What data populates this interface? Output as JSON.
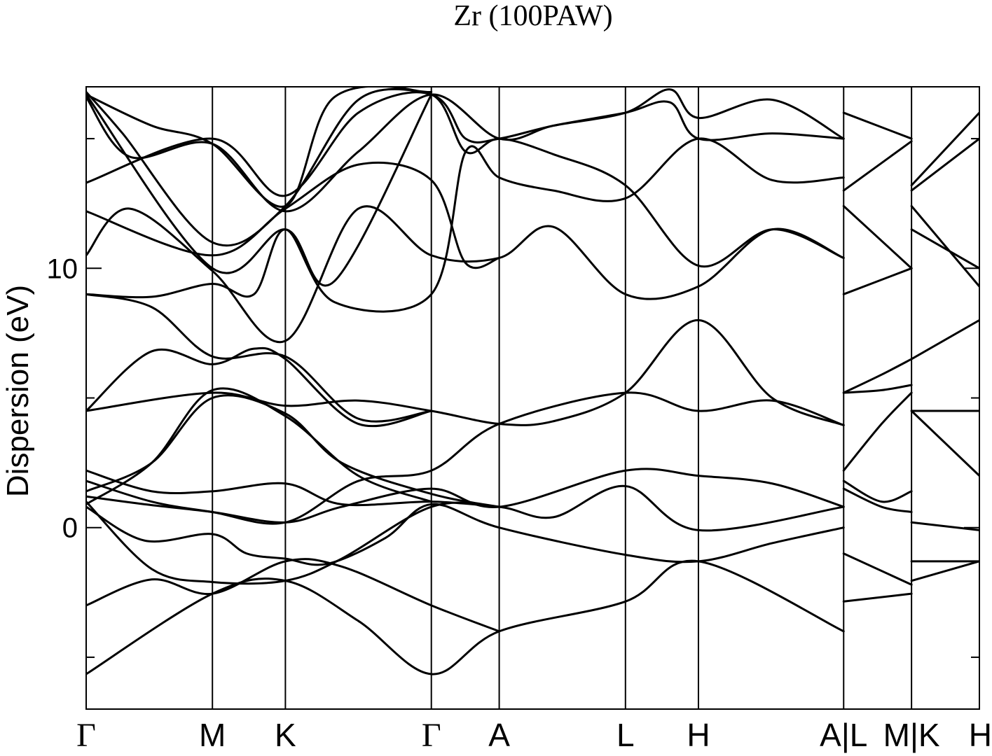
{
  "chart_data": {
    "type": "line",
    "title": "Zr (100PAW)",
    "xlabel": "",
    "ylabel": "Dispersion (eV)",
    "ylim": [
      -7,
      17
    ],
    "xlim": [
      0,
      12.24
    ],
    "grid": false,
    "legend": "none",
    "line_color": "#000000",
    "yticks": [
      {
        "value": 0,
        "label": "0"
      },
      {
        "value": 10,
        "label": "10"
      }
    ],
    "yminor_ticks": [
      -5,
      5,
      15
    ],
    "k_points": [
      {
        "label": "Γ",
        "x": 0
      },
      {
        "label": "M",
        "x": 1.73
      },
      {
        "label": "K",
        "x": 2.73
      },
      {
        "label": "Γ",
        "x": 4.73
      },
      {
        "label": "A",
        "x": 5.66
      },
      {
        "label": "L",
        "x": 7.39
      },
      {
        "label": "H",
        "x": 8.39
      },
      {
        "label": "A|L",
        "x": 10.38
      },
      {
        "label": "M|K",
        "x": 11.31
      },
      {
        "label": "H",
        "x": 12.24
      }
    ],
    "series": [
      {
        "points": [
          [
            0,
            -5.65
          ],
          [
            1.73,
            -2.55
          ],
          [
            2.73,
            -2.05
          ],
          [
            3.73,
            -3.6
          ],
          [
            4.73,
            -5.65
          ],
          [
            5.66,
            -4.0
          ],
          [
            7.39,
            -2.85
          ],
          [
            8.39,
            -1.3
          ],
          [
            10.38,
            -4.0
          ]
        ]
      },
      {
        "points": [
          [
            10.38,
            -2.85
          ],
          [
            11.31,
            -2.55
          ]
        ]
      },
      {
        "points": [
          [
            11.31,
            -2.05
          ],
          [
            12.24,
            -1.3
          ]
        ]
      },
      {
        "points": [
          [
            0,
            -3.0
          ],
          [
            0.9,
            -2.0
          ],
          [
            1.73,
            -2.55
          ],
          [
            2.73,
            -1.3
          ],
          [
            3.5,
            -1.5
          ],
          [
            4.73,
            -3.0
          ],
          [
            5.66,
            -4.0
          ]
        ]
      },
      {
        "points": [
          [
            0,
            0.8
          ],
          [
            0.8,
            -0.5
          ],
          [
            1.73,
            -0.25
          ],
          [
            2.2,
            -1.0
          ],
          [
            2.73,
            -1.2
          ],
          [
            3.3,
            -1.4
          ],
          [
            4.1,
            -0.4
          ],
          [
            4.73,
            0.9
          ],
          [
            5.66,
            0.0
          ],
          [
            7.39,
            -1.05
          ],
          [
            8.39,
            -1.3
          ],
          [
            9.4,
            -0.6
          ],
          [
            10.38,
            0.0
          ]
        ]
      },
      {
        "points": [
          [
            10.38,
            -1.0
          ],
          [
            11.31,
            -2.2
          ]
        ]
      },
      {
        "points": [
          [
            11.31,
            -1.3
          ],
          [
            12.24,
            -1.3
          ]
        ]
      },
      {
        "points": [
          [
            0,
            1.0
          ],
          [
            0.9,
            -1.6
          ],
          [
            1.73,
            -2.1
          ],
          [
            2.73,
            -2.05
          ],
          [
            3.5,
            -1.2
          ],
          [
            4.73,
            0.8
          ],
          [
            5.66,
            0.8
          ],
          [
            6.4,
            0.4
          ],
          [
            7.39,
            1.6
          ],
          [
            8.39,
            -0.1
          ],
          [
            10.38,
            0.8
          ]
        ]
      },
      {
        "points": [
          [
            10.38,
            1.5
          ],
          [
            10.9,
            0.8
          ],
          [
            11.31,
            0.6
          ]
        ]
      },
      {
        "points": [
          [
            11.31,
            0.2
          ],
          [
            12.24,
            -0.1
          ]
        ]
      },
      {
        "points": [
          [
            0,
            1.2
          ],
          [
            0.8,
            0.9
          ],
          [
            1.73,
            0.6
          ],
          [
            2.73,
            0.2
          ],
          [
            3.5,
            0.8
          ],
          [
            4.73,
            1.5
          ],
          [
            5.66,
            0.8
          ],
          [
            7.39,
            2.2
          ],
          [
            8.39,
            2.0
          ],
          [
            9.4,
            1.7
          ],
          [
            10.38,
            0.8
          ]
        ]
      },
      {
        "points": [
          [
            10.38,
            1.8
          ],
          [
            10.9,
            1.0
          ],
          [
            11.31,
            1.4
          ]
        ]
      },
      {
        "points": [
          [
            11.31,
            4.5
          ],
          [
            12.24,
            2.0
          ]
        ]
      },
      {
        "points": [
          [
            0,
            2.2
          ],
          [
            0.9,
            1.4
          ],
          [
            1.73,
            1.4
          ],
          [
            2.73,
            1.7
          ],
          [
            3.5,
            0.9
          ],
          [
            4.73,
            1.0
          ],
          [
            5.66,
            0.8
          ]
        ]
      },
      {
        "points": [
          [
            0,
            1.4
          ],
          [
            0.9,
            2.5
          ],
          [
            1.73,
            5.0
          ],
          [
            2.73,
            4.4
          ],
          [
            3.5,
            2.5
          ],
          [
            4.73,
            1.3
          ],
          [
            5.66,
            0.8
          ]
        ]
      },
      {
        "points": [
          [
            0,
            1.8
          ],
          [
            0.9,
            1.0
          ],
          [
            1.73,
            0.6
          ],
          [
            2.73,
            0.2
          ],
          [
            3.73,
            1.8
          ],
          [
            4.73,
            2.2
          ],
          [
            5.66,
            4.0
          ],
          [
            7.39,
            5.2
          ],
          [
            8.39,
            4.5
          ],
          [
            9.4,
            4.9
          ],
          [
            10.38,
            3.95
          ]
        ]
      },
      {
        "points": [
          [
            10.38,
            2.2
          ],
          [
            10.9,
            4.0
          ],
          [
            11.31,
            5.2
          ]
        ]
      },
      {
        "points": [
          [
            0,
            4.5
          ],
          [
            1.73,
            5.2
          ],
          [
            2.73,
            4.7
          ],
          [
            3.73,
            4.9
          ],
          [
            4.73,
            4.5
          ],
          [
            5.66,
            4.0
          ],
          [
            6.4,
            4.1
          ],
          [
            7.39,
            5.2
          ],
          [
            8.39,
            8.0
          ],
          [
            9.4,
            5.0
          ],
          [
            10.38,
            3.95
          ]
        ]
      },
      {
        "points": [
          [
            10.38,
            5.2
          ],
          [
            10.9,
            5.3
          ],
          [
            11.31,
            5.5
          ]
        ]
      },
      {
        "points": [
          [
            11.31,
            4.5
          ],
          [
            12.24,
            4.5
          ]
        ]
      },
      {
        "points": [
          [
            0,
            0.9
          ],
          [
            0.9,
            2.5
          ],
          [
            1.73,
            5.3
          ],
          [
            2.73,
            4.3
          ],
          [
            3.73,
            2.0
          ],
          [
            4.73,
            1.0
          ]
        ]
      },
      {
        "points": [
          [
            0,
            4.5
          ],
          [
            0.9,
            6.8
          ],
          [
            1.73,
            6.3
          ],
          [
            2.3,
            6.9
          ],
          [
            2.73,
            6.5
          ],
          [
            3.73,
            4.0
          ],
          [
            4.73,
            4.5
          ]
        ]
      },
      {
        "points": [
          [
            0,
            9.0
          ],
          [
            0.9,
            8.5
          ],
          [
            1.73,
            6.6
          ],
          [
            2.73,
            6.6
          ],
          [
            3.73,
            4.2
          ],
          [
            4.73,
            4.5
          ]
        ]
      },
      {
        "points": [
          [
            10.38,
            5.2
          ],
          [
            10.9,
            5.9
          ],
          [
            11.31,
            6.5
          ]
        ]
      },
      {
        "points": [
          [
            11.31,
            6.5
          ],
          [
            12.24,
            8.0
          ]
        ]
      },
      {
        "points": [
          [
            0,
            10.5
          ],
          [
            0.6,
            12.3
          ],
          [
            1.73,
            9.9
          ],
          [
            2.73,
            7.2
          ],
          [
            3.73,
            12.3
          ],
          [
            4.73,
            10.5
          ],
          [
            5.66,
            10.4
          ],
          [
            6.4,
            11.6
          ],
          [
            7.39,
            9.0
          ],
          [
            8.39,
            9.3
          ],
          [
            9.4,
            11.5
          ],
          [
            10.38,
            10.4
          ]
        ]
      },
      {
        "points": [
          [
            10.38,
            9.0
          ],
          [
            11.31,
            10.0
          ]
        ]
      },
      {
        "points": [
          [
            11.31,
            11.5
          ],
          [
            12.24,
            10.0
          ]
        ]
      },
      {
        "points": [
          [
            0,
            9.0
          ],
          [
            0.9,
            8.9
          ],
          [
            1.73,
            9.4
          ],
          [
            2.3,
            9.0
          ],
          [
            2.73,
            11.5
          ],
          [
            3.4,
            8.7
          ],
          [
            4.73,
            9.0
          ],
          [
            5.2,
            14.5
          ],
          [
            5.66,
            13.5
          ],
          [
            6.4,
            13.0
          ],
          [
            7.39,
            12.7
          ],
          [
            8.39,
            15.0
          ],
          [
            9.4,
            13.4
          ],
          [
            10.38,
            13.5
          ]
        ]
      },
      {
        "points": [
          [
            10.38,
            12.4
          ],
          [
            11.31,
            10.0
          ]
        ]
      },
      {
        "points": [
          [
            11.31,
            12.4
          ],
          [
            12.24,
            9.3
          ]
        ]
      },
      {
        "points": [
          [
            0,
            12.2
          ],
          [
            1.73,
            10.5
          ],
          [
            2.73,
            12.3
          ],
          [
            3.73,
            14.0
          ],
          [
            4.73,
            13.4
          ],
          [
            5.2,
            10.2
          ],
          [
            5.66,
            10.4
          ]
        ]
      },
      {
        "points": [
          [
            0,
            13.3
          ],
          [
            1.73,
            15.0
          ],
          [
            2.73,
            12.8
          ],
          [
            3.73,
            16.0
          ],
          [
            4.73,
            16.7
          ],
          [
            5.2,
            14.5
          ],
          [
            5.66,
            15.0
          ],
          [
            6.4,
            14.4
          ],
          [
            7.39,
            13.2
          ],
          [
            8.39,
            10.1
          ],
          [
            9.4,
            11.5
          ],
          [
            10.38,
            10.4
          ]
        ]
      },
      {
        "points": [
          [
            0,
            16.6
          ],
          [
            0.6,
            14.3
          ],
          [
            1.73,
            14.8
          ],
          [
            2.73,
            12.2
          ],
          [
            3.73,
            14.5
          ],
          [
            4.73,
            16.7
          ],
          [
            5.66,
            15.0
          ],
          [
            6.4,
            15.5
          ],
          [
            7.39,
            16.0
          ],
          [
            8.0,
            16.4
          ],
          [
            8.39,
            15.0
          ],
          [
            9.4,
            15.2
          ],
          [
            10.38,
            15.0
          ]
        ]
      },
      {
        "points": [
          [
            10.38,
            13.0
          ],
          [
            11.31,
            14.9
          ]
        ]
      },
      {
        "points": [
          [
            11.31,
            13.0
          ],
          [
            12.24,
            15.0
          ]
        ]
      },
      {
        "points": [
          [
            0,
            16.7
          ],
          [
            0.9,
            15.5
          ],
          [
            1.73,
            14.8
          ],
          [
            2.73,
            12.4
          ],
          [
            3.4,
            16.6
          ],
          [
            4.73,
            16.7
          ],
          [
            5.2,
            15.0
          ],
          [
            5.66,
            15.0
          ],
          [
            6.4,
            15.5
          ],
          [
            7.39,
            16.0
          ],
          [
            8.0,
            16.9
          ],
          [
            8.39,
            15.8
          ],
          [
            9.4,
            16.5
          ],
          [
            10.38,
            15.0
          ]
        ]
      },
      {
        "points": [
          [
            10.38,
            16.0
          ],
          [
            11.31,
            15.0
          ]
        ]
      },
      {
        "points": [
          [
            11.31,
            13.2
          ],
          [
            12.24,
            16.0
          ]
        ]
      },
      {
        "points": [
          [
            0,
            16.8
          ],
          [
            0.5,
            15.2
          ],
          [
            1.73,
            11.0
          ],
          [
            2.73,
            12.4
          ],
          [
            3.73,
            16.5
          ],
          [
            4.73,
            16.8
          ]
        ]
      },
      {
        "points": [
          [
            0,
            16.7
          ],
          [
            1.73,
            10.0
          ],
          [
            2.73,
            11.5
          ],
          [
            3.4,
            9.5
          ],
          [
            4.73,
            16.7
          ]
        ]
      }
    ]
  }
}
